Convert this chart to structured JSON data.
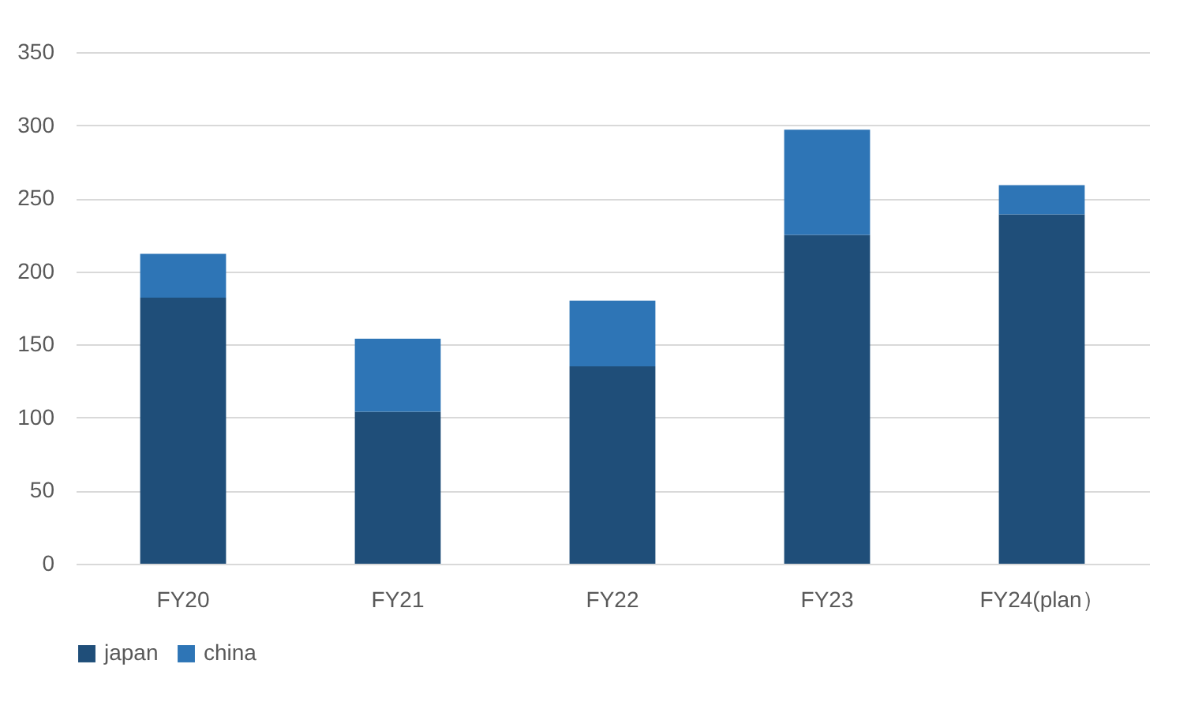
{
  "chart_data": {
    "type": "bar",
    "stacked": true,
    "categories": [
      "FY20",
      "FY21",
      "FY22",
      "FY23",
      "FY24(plan）"
    ],
    "series": [
      {
        "name": "japan",
        "color": "#1f4e79",
        "values": [
          182,
          104,
          135,
          225,
          239
        ]
      },
      {
        "name": "china",
        "color": "#2e75b6",
        "values": [
          30,
          50,
          45,
          72,
          20
        ]
      }
    ],
    "ylim": [
      0,
      350
    ],
    "yticks": [
      0,
      50,
      100,
      150,
      200,
      250,
      300,
      350
    ],
    "grid": "y",
    "legend": "bottom"
  }
}
